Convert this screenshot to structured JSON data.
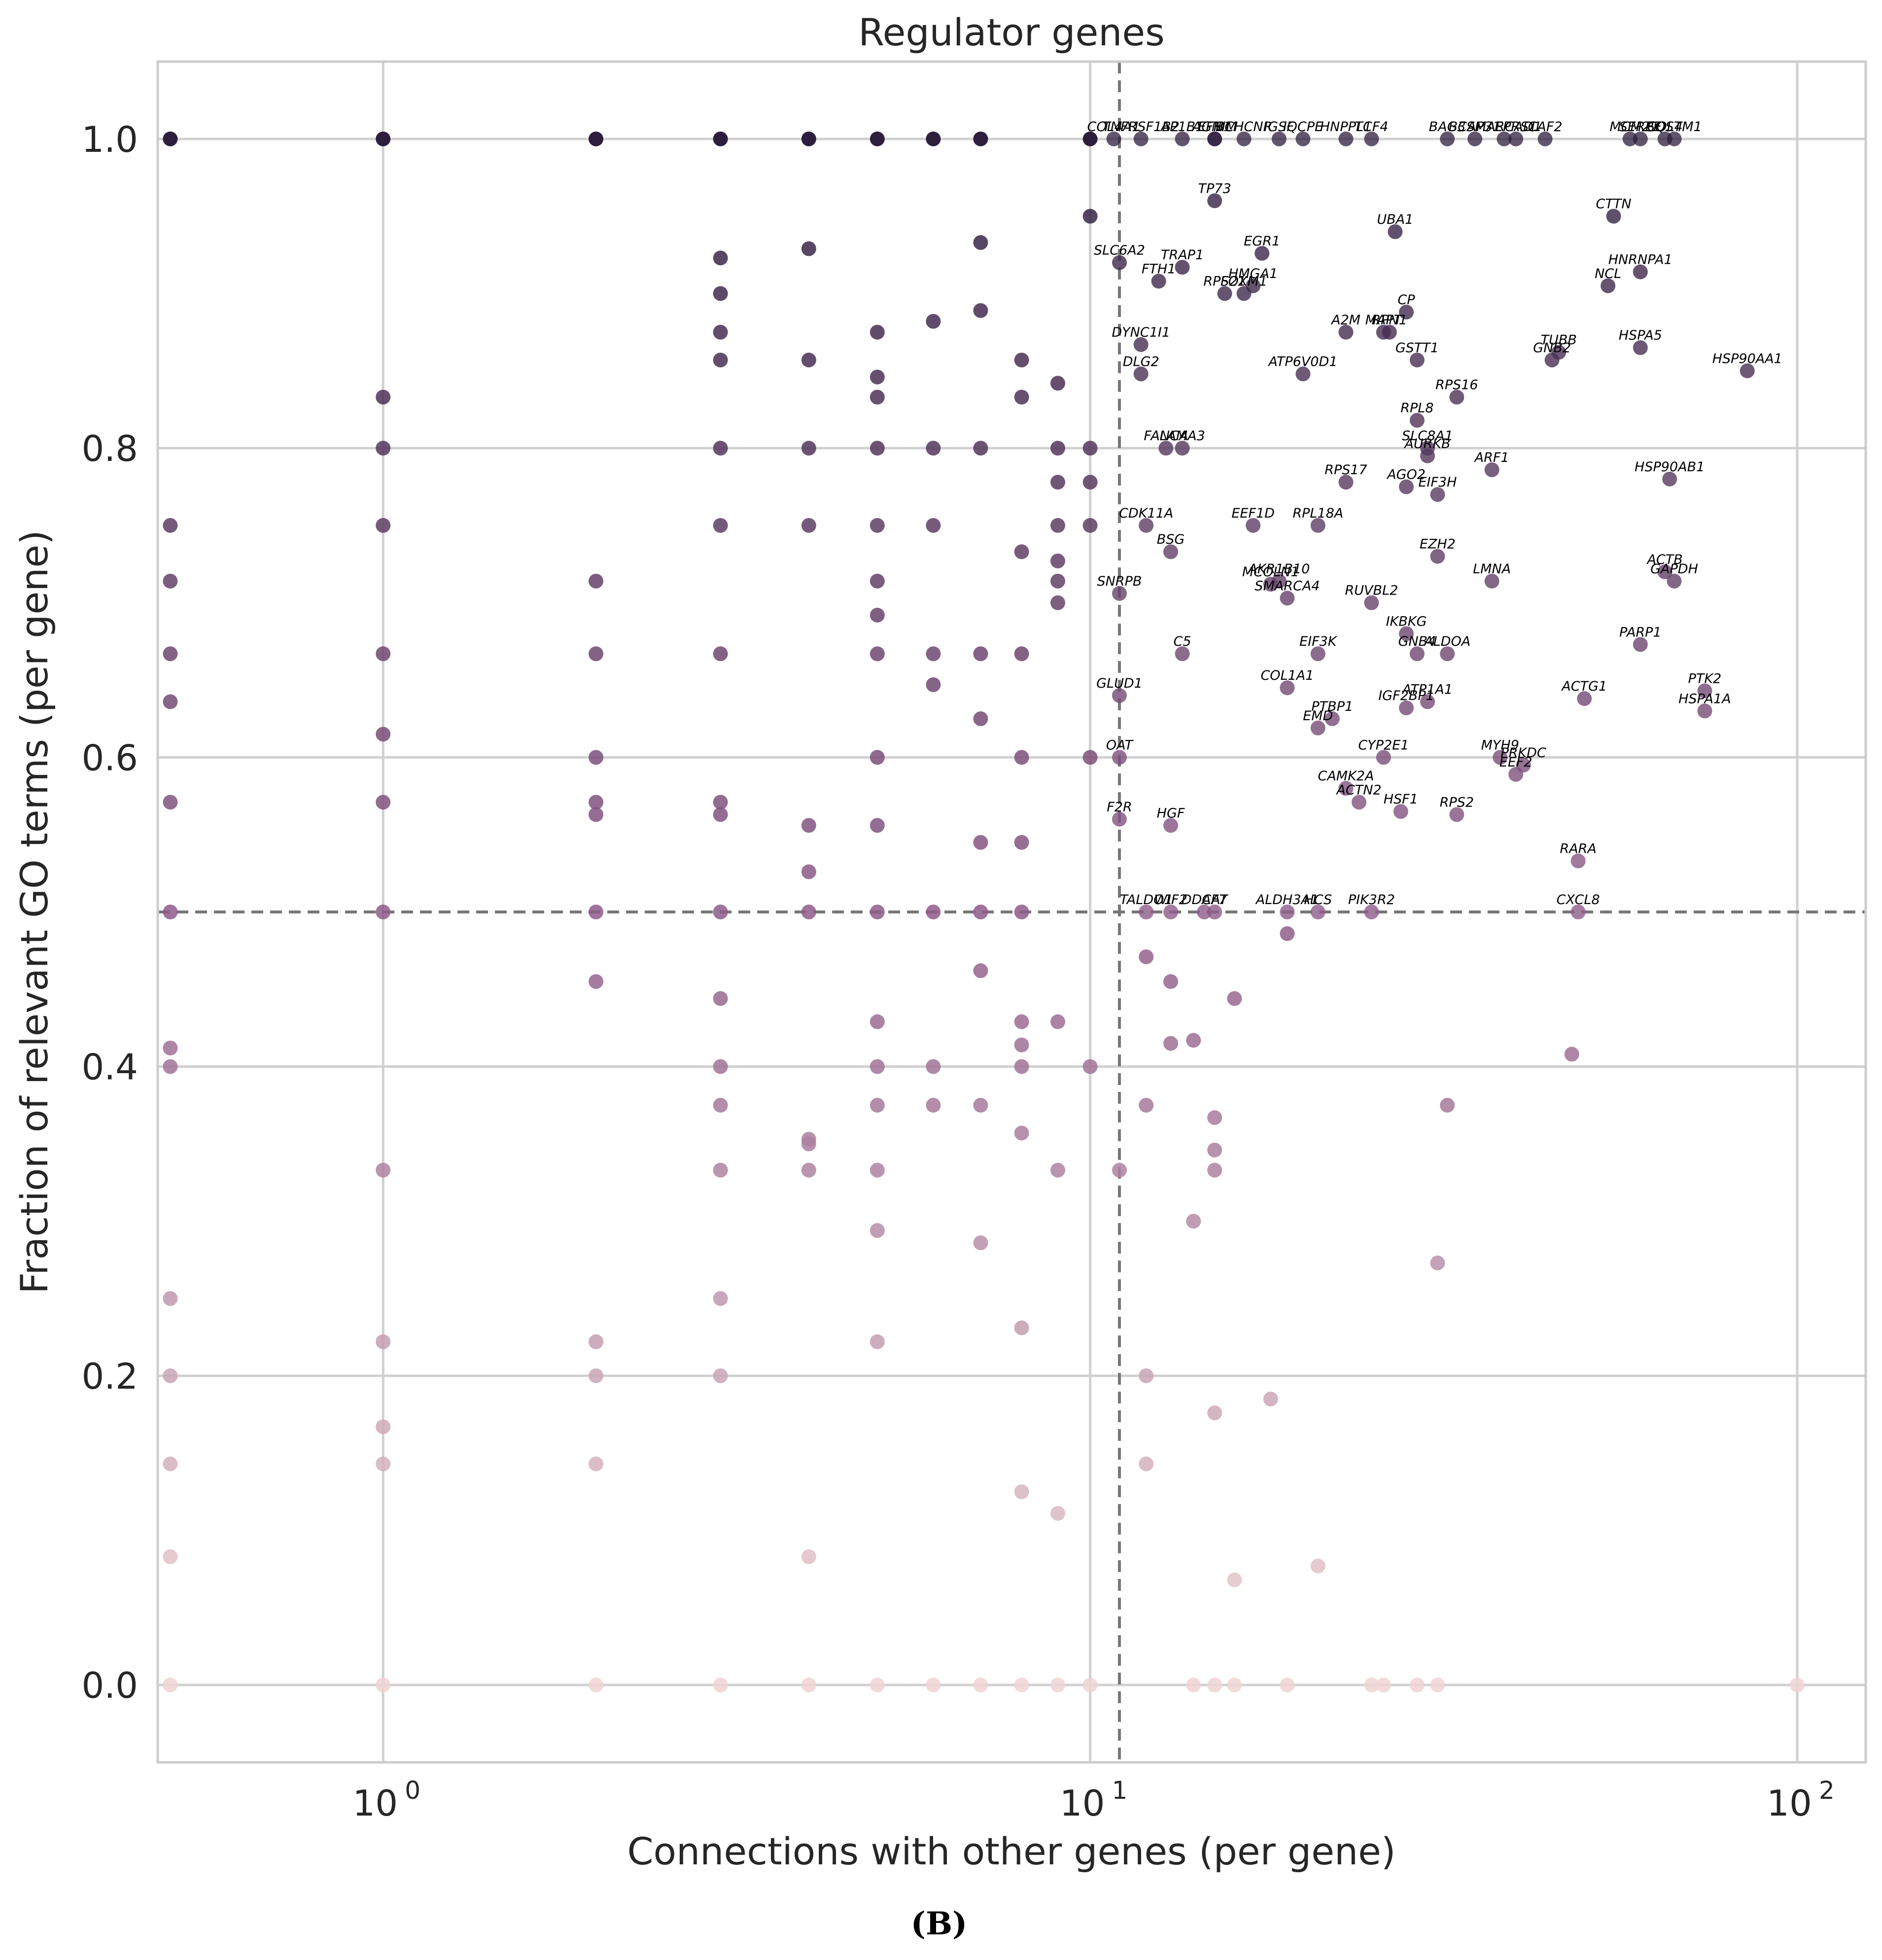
{
  "chart_data": {
    "type": "scatter",
    "title": "Regulator genes",
    "xlabel": "Connections with other genes (per gene)",
    "ylabel": "Fraction of relevant GO terms (per gene)",
    "xscale": "log",
    "xlim": [
      0.48,
      125
    ],
    "ylim": [
      -0.05,
      1.05
    ],
    "x_ticks": [
      {
        "value": 1,
        "base": "10",
        "exp": "0"
      },
      {
        "value": 10,
        "base": "10",
        "exp": "1"
      },
      {
        "value": 100,
        "base": "10",
        "exp": "2"
      }
    ],
    "y_ticks": [
      {
        "value": 0.0,
        "label": "0.0"
      },
      {
        "value": 0.2,
        "label": "0.2"
      },
      {
        "value": 0.4,
        "label": "0.4"
      },
      {
        "value": 0.6,
        "label": "0.6"
      },
      {
        "value": 0.8,
        "label": "0.8"
      },
      {
        "value": 1.0,
        "label": "1.0"
      }
    ],
    "grid": true,
    "threshold_lines": {
      "x": 11,
      "y": 0.5
    },
    "caption": "(B)",
    "colors": {
      "high": "#2d1e3e",
      "mid": "#8e5b89",
      "low": "#efd4d2",
      "grid": "#d0d0d0",
      "threshold": "#777777",
      "frame": "#cccccc"
    },
    "unlabeled_points": [
      [
        0.5,
        1
      ],
      [
        1,
        1
      ],
      [
        2,
        1
      ],
      [
        3,
        1
      ],
      [
        4,
        1
      ],
      [
        5,
        1
      ],
      [
        6,
        1
      ],
      [
        7,
        1
      ],
      [
        0.5,
        0.75
      ],
      [
        0.5,
        0.714
      ],
      [
        0.5,
        0.667
      ],
      [
        0.5,
        0.636
      ],
      [
        0.5,
        0.571
      ],
      [
        0.5,
        0.5
      ],
      [
        0.5,
        0.412
      ],
      [
        0.5,
        0.4
      ],
      [
        0.5,
        0.25
      ],
      [
        0.5,
        0.2
      ],
      [
        0.5,
        0.143
      ],
      [
        0.5,
        0.083
      ],
      [
        0.5,
        0
      ],
      [
        1,
        0.833
      ],
      [
        1,
        0.8
      ],
      [
        1,
        0.75
      ],
      [
        1,
        0.667
      ],
      [
        1,
        0.615
      ],
      [
        1,
        0.571
      ],
      [
        1,
        0.5
      ],
      [
        1,
        0.333
      ],
      [
        1,
        0.222
      ],
      [
        1,
        0.167
      ],
      [
        1,
        0.143
      ],
      [
        1,
        0
      ],
      [
        2,
        0.714
      ],
      [
        2,
        0.667
      ],
      [
        2,
        0.6
      ],
      [
        2,
        0.571
      ],
      [
        2,
        0.563
      ],
      [
        2,
        0.5
      ],
      [
        2,
        0.455
      ],
      [
        2,
        0.222
      ],
      [
        2,
        0.2
      ],
      [
        2,
        0.143
      ],
      [
        2,
        0
      ],
      [
        3,
        0.923
      ],
      [
        3,
        0.9
      ],
      [
        3,
        0.875
      ],
      [
        3,
        0.857
      ],
      [
        3,
        0.8
      ],
      [
        3,
        0.75
      ],
      [
        3,
        0.667
      ],
      [
        3,
        0.571
      ],
      [
        3,
        0.563
      ],
      [
        3,
        0.5
      ],
      [
        3,
        0.444
      ],
      [
        3,
        0.4
      ],
      [
        3,
        0.375
      ],
      [
        3,
        0.333
      ],
      [
        3,
        0.25
      ],
      [
        3,
        0.2
      ],
      [
        3,
        0
      ],
      [
        4,
        0.929
      ],
      [
        4,
        0.857
      ],
      [
        4,
        0.8
      ],
      [
        4,
        0.75
      ],
      [
        4,
        0.556
      ],
      [
        4,
        0.526
      ],
      [
        4,
        0.5
      ],
      [
        4,
        0.353
      ],
      [
        4,
        0.35
      ],
      [
        4,
        0.333
      ],
      [
        4,
        0.083
      ],
      [
        4,
        0
      ],
      [
        5,
        0.875
      ],
      [
        5,
        0.846
      ],
      [
        5,
        0.833
      ],
      [
        5,
        0.8
      ],
      [
        5,
        0.75
      ],
      [
        5,
        0.714
      ],
      [
        5,
        0.692
      ],
      [
        5,
        0.667
      ],
      [
        5,
        0.6
      ],
      [
        5,
        0.556
      ],
      [
        5,
        0.5
      ],
      [
        5,
        0.429
      ],
      [
        5,
        0.4
      ],
      [
        5,
        0.375
      ],
      [
        5,
        0.333
      ],
      [
        5,
        0.294
      ],
      [
        5,
        0.222
      ],
      [
        5,
        0
      ],
      [
        6,
        0.882
      ],
      [
        6,
        0.8
      ],
      [
        6,
        0.75
      ],
      [
        6,
        0.667
      ],
      [
        6,
        0.647
      ],
      [
        6,
        0.5
      ],
      [
        6,
        0.4
      ],
      [
        6,
        0.375
      ],
      [
        6,
        0
      ],
      [
        7,
        0.933
      ],
      [
        7,
        0.889
      ],
      [
        7,
        0.8
      ],
      [
        7,
        0.667
      ],
      [
        7,
        0.625
      ],
      [
        7,
        0.545
      ],
      [
        7,
        0.5
      ],
      [
        7,
        0.462
      ],
      [
        7,
        0.375
      ],
      [
        7,
        0.286
      ],
      [
        7,
        0
      ],
      [
        8,
        0.857
      ],
      [
        8,
        0.833
      ],
      [
        8,
        0.733
      ],
      [
        8,
        0.667
      ],
      [
        8,
        0.6
      ],
      [
        8,
        0.545
      ],
      [
        8,
        0.5
      ],
      [
        8,
        0.429
      ],
      [
        8,
        0.414
      ],
      [
        8,
        0.4
      ],
      [
        8,
        0.357
      ],
      [
        8,
        0.231
      ],
      [
        8,
        0.125
      ],
      [
        8,
        0
      ],
      [
        9,
        0.842
      ],
      [
        9,
        0.8
      ],
      [
        9,
        0.778
      ],
      [
        9,
        0.75
      ],
      [
        9,
        0.727
      ],
      [
        9,
        0.714
      ],
      [
        9,
        0.7
      ],
      [
        9,
        0.429
      ],
      [
        9,
        0.333
      ],
      [
        9,
        0.111
      ],
      [
        9,
        0
      ],
      [
        10,
        1
      ],
      [
        10,
        0.95
      ],
      [
        10,
        0.8
      ],
      [
        10,
        0.778
      ],
      [
        10,
        0.75
      ],
      [
        10,
        0.6
      ],
      [
        10,
        0.4
      ],
      [
        10,
        0
      ],
      [
        11,
        0.333
      ],
      [
        12,
        0.471
      ],
      [
        12,
        0.375
      ],
      [
        12,
        0.2
      ],
      [
        12,
        0.143
      ],
      [
        13,
        0.455
      ],
      [
        13,
        0.415
      ],
      [
        14,
        0.417
      ],
      [
        14,
        0.3
      ],
      [
        14,
        0
      ],
      [
        15,
        0.367
      ],
      [
        15,
        0.346
      ],
      [
        15,
        0.333
      ],
      [
        15,
        0.176
      ],
      [
        15,
        0
      ],
      [
        16,
        0.444
      ],
      [
        16,
        0.068
      ],
      [
        16,
        0
      ],
      [
        18,
        0.185
      ],
      [
        19,
        0.486
      ],
      [
        19,
        0
      ],
      [
        21,
        0.077
      ],
      [
        25,
        0
      ],
      [
        26,
        0
      ],
      [
        29,
        0
      ],
      [
        31,
        0.273
      ],
      [
        31,
        0
      ],
      [
        32,
        0.375
      ],
      [
        48,
        0.408
      ],
      [
        100,
        0
      ]
    ],
    "labeled_points": [
      {
        "label": "COL4A1",
        "x": 10.8,
        "y": 1.0
      },
      {
        "label": "TNFRSF1B2",
        "x": 11.8,
        "y": 1.0
      },
      {
        "label": "AP1B1",
        "x": 13.5,
        "y": 1.0
      },
      {
        "label": "AGNIM",
        "x": 15.0,
        "y": 1.0
      },
      {
        "label": "BCHCNR",
        "x": 16.5,
        "y": 1.0
      },
      {
        "label": "EFN1",
        "x": 15.0,
        "y": 1.0
      },
      {
        "label": "IGSF",
        "x": 18.5,
        "y": 1.0
      },
      {
        "label": "IQCPE",
        "x": 20.0,
        "y": 1.0
      },
      {
        "label": "HNPPL1",
        "x": 23.0,
        "y": 1.0
      },
      {
        "label": "TCF4",
        "x": 25.0,
        "y": 1.0
      },
      {
        "label": "BAG3",
        "x": 32.0,
        "y": 1.0
      },
      {
        "label": "BCAP31",
        "x": 35.0,
        "y": 1.0
      },
      {
        "label": "SMARCAD1",
        "x": 38.5,
        "y": 1.0
      },
      {
        "label": "EPRS1",
        "x": 40.0,
        "y": 1.0
      },
      {
        "label": "CAF2",
        "x": 44.0,
        "y": 1.0
      },
      {
        "label": "MCM2",
        "x": 58.0,
        "y": 1.0
      },
      {
        "label": "SERPE",
        "x": 60.0,
        "y": 1.0
      },
      {
        "label": "COL4",
        "x": 65.0,
        "y": 1.0
      },
      {
        "label": "SQSTM1",
        "x": 67.0,
        "y": 1.0
      },
      {
        "label": "TP73",
        "x": 15.0,
        "y": 0.96
      },
      {
        "label": "UBA1",
        "x": 27.0,
        "y": 0.94
      },
      {
        "label": "CTTN",
        "x": 55.0,
        "y": 0.95
      },
      {
        "label": "SLC6A2",
        "x": 11.0,
        "y": 0.92
      },
      {
        "label": "TRAP1",
        "x": 13.5,
        "y": 0.917
      },
      {
        "label": "EGR1",
        "x": 17.5,
        "y": 0.926
      },
      {
        "label": "FTH1",
        "x": 12.5,
        "y": 0.908
      },
      {
        "label": "RPS21",
        "x": 15.5,
        "y": 0.9
      },
      {
        "label": "FOXM1",
        "x": 16.5,
        "y": 0.9
      },
      {
        "label": "HMGA1",
        "x": 17.0,
        "y": 0.905
      },
      {
        "label": "HNRNPA1",
        "x": 60.0,
        "y": 0.914
      },
      {
        "label": "NCL",
        "x": 54.0,
        "y": 0.905
      },
      {
        "label": "CP",
        "x": 28.0,
        "y": 0.888
      },
      {
        "label": "A2M",
        "x": 23.0,
        "y": 0.875
      },
      {
        "label": "MAPT",
        "x": 26.0,
        "y": 0.875
      },
      {
        "label": "RPN1",
        "x": 26.5,
        "y": 0.875
      },
      {
        "label": "DYNC1I1",
        "x": 11.8,
        "y": 0.867
      },
      {
        "label": "TUBB",
        "x": 46.0,
        "y": 0.862
      },
      {
        "label": "GNB2",
        "x": 45.0,
        "y": 0.857
      },
      {
        "label": "HSPA5",
        "x": 60.0,
        "y": 0.865
      },
      {
        "label": "GSTT1",
        "x": 29.0,
        "y": 0.857
      },
      {
        "label": "DLG2",
        "x": 11.8,
        "y": 0.848
      },
      {
        "label": "ATP6V0D1",
        "x": 20.0,
        "y": 0.848
      },
      {
        "label": "HSP90AA1",
        "x": 85.0,
        "y": 0.85
      },
      {
        "label": "RPS16",
        "x": 33.0,
        "y": 0.833
      },
      {
        "label": "RPL8",
        "x": 29.0,
        "y": 0.818
      },
      {
        "label": "LAMA3",
        "x": 13.5,
        "y": 0.8
      },
      {
        "label": "FANCA",
        "x": 12.8,
        "y": 0.8
      },
      {
        "label": "SLC8A1",
        "x": 30.0,
        "y": 0.8
      },
      {
        "label": "AURKB",
        "x": 30.0,
        "y": 0.795
      },
      {
        "label": "ARF1",
        "x": 37.0,
        "y": 0.786
      },
      {
        "label": "HSP90AB1",
        "x": 66.0,
        "y": 0.78
      },
      {
        "label": "RPS17",
        "x": 23.0,
        "y": 0.778
      },
      {
        "label": "AGO2",
        "x": 28.0,
        "y": 0.775
      },
      {
        "label": "EIF3H",
        "x": 31.0,
        "y": 0.77
      },
      {
        "label": "CDK11A",
        "x": 12.0,
        "y": 0.75
      },
      {
        "label": "EEF1D",
        "x": 17.0,
        "y": 0.75
      },
      {
        "label": "RPL18A",
        "x": 21.0,
        "y": 0.75
      },
      {
        "label": "BSG",
        "x": 13.0,
        "y": 0.733
      },
      {
        "label": "EZH2",
        "x": 31.0,
        "y": 0.73
      },
      {
        "label": "AKR1B10",
        "x": 18.5,
        "y": 0.714
      },
      {
        "label": "MCOLN1",
        "x": 18.0,
        "y": 0.712
      },
      {
        "label": "LMNA",
        "x": 37.0,
        "y": 0.714
      },
      {
        "label": "ACTB",
        "x": 65.0,
        "y": 0.72
      },
      {
        "label": "GAPDH",
        "x": 67.0,
        "y": 0.714
      },
      {
        "label": "SNRPB",
        "x": 11.0,
        "y": 0.706
      },
      {
        "label": "SMARCA4",
        "x": 19.0,
        "y": 0.703
      },
      {
        "label": "RUVBL2",
        "x": 25.0,
        "y": 0.7
      },
      {
        "label": "IKBKG",
        "x": 28.0,
        "y": 0.68
      },
      {
        "label": "C5",
        "x": 13.5,
        "y": 0.667
      },
      {
        "label": "EIF3K",
        "x": 21.0,
        "y": 0.667
      },
      {
        "label": "GNB4",
        "x": 29.0,
        "y": 0.667
      },
      {
        "label": "ALDOA",
        "x": 32.0,
        "y": 0.667
      },
      {
        "label": "PARP1",
        "x": 60.0,
        "y": 0.673
      },
      {
        "label": "COL1A1",
        "x": 19.0,
        "y": 0.645
      },
      {
        "label": "GLUD1",
        "x": 11.0,
        "y": 0.64
      },
      {
        "label": "ACTG1",
        "x": 50.0,
        "y": 0.638
      },
      {
        "label": "PTK2",
        "x": 74.0,
        "y": 0.643
      },
      {
        "label": "ATP1A1",
        "x": 30.0,
        "y": 0.636
      },
      {
        "label": "IGF2BP1",
        "x": 28.0,
        "y": 0.632
      },
      {
        "label": "HSPA1A",
        "x": 74.0,
        "y": 0.63
      },
      {
        "label": "PTBP1",
        "x": 22.0,
        "y": 0.625
      },
      {
        "label": "EMD",
        "x": 21.0,
        "y": 0.619
      },
      {
        "label": "OAT",
        "x": 11.0,
        "y": 0.6
      },
      {
        "label": "CYP2E1",
        "x": 26.0,
        "y": 0.6
      },
      {
        "label": "MYH9",
        "x": 38.0,
        "y": 0.6
      },
      {
        "label": "PRKDC",
        "x": 41.0,
        "y": 0.595
      },
      {
        "label": "EEF2",
        "x": 40.0,
        "y": 0.589
      },
      {
        "label": "CAMK2A",
        "x": 23.0,
        "y": 0.58
      },
      {
        "label": "ACTN2",
        "x": 24.0,
        "y": 0.571
      },
      {
        "label": "HSF1",
        "x": 27.5,
        "y": 0.565
      },
      {
        "label": "RPS2",
        "x": 33.0,
        "y": 0.563
      },
      {
        "label": "F2R",
        "x": 11.0,
        "y": 0.56
      },
      {
        "label": "HGF",
        "x": 13.0,
        "y": 0.556
      },
      {
        "label": "RARA",
        "x": 49.0,
        "y": 0.533
      },
      {
        "label": "TALDO1",
        "x": 12.0,
        "y": 0.5
      },
      {
        "label": "WIF2",
        "x": 13.0,
        "y": 0.5
      },
      {
        "label": "DDAF7",
        "x": 14.5,
        "y": 0.5
      },
      {
        "label": "CAT",
        "x": 15.0,
        "y": 0.5
      },
      {
        "label": "ALDH3A1",
        "x": 19.0,
        "y": 0.5
      },
      {
        "label": "HCS",
        "x": 21.0,
        "y": 0.5
      },
      {
        "label": "PIK3R2",
        "x": 25.0,
        "y": 0.5
      },
      {
        "label": "CXCL8",
        "x": 49.0,
        "y": 0.5
      }
    ]
  }
}
